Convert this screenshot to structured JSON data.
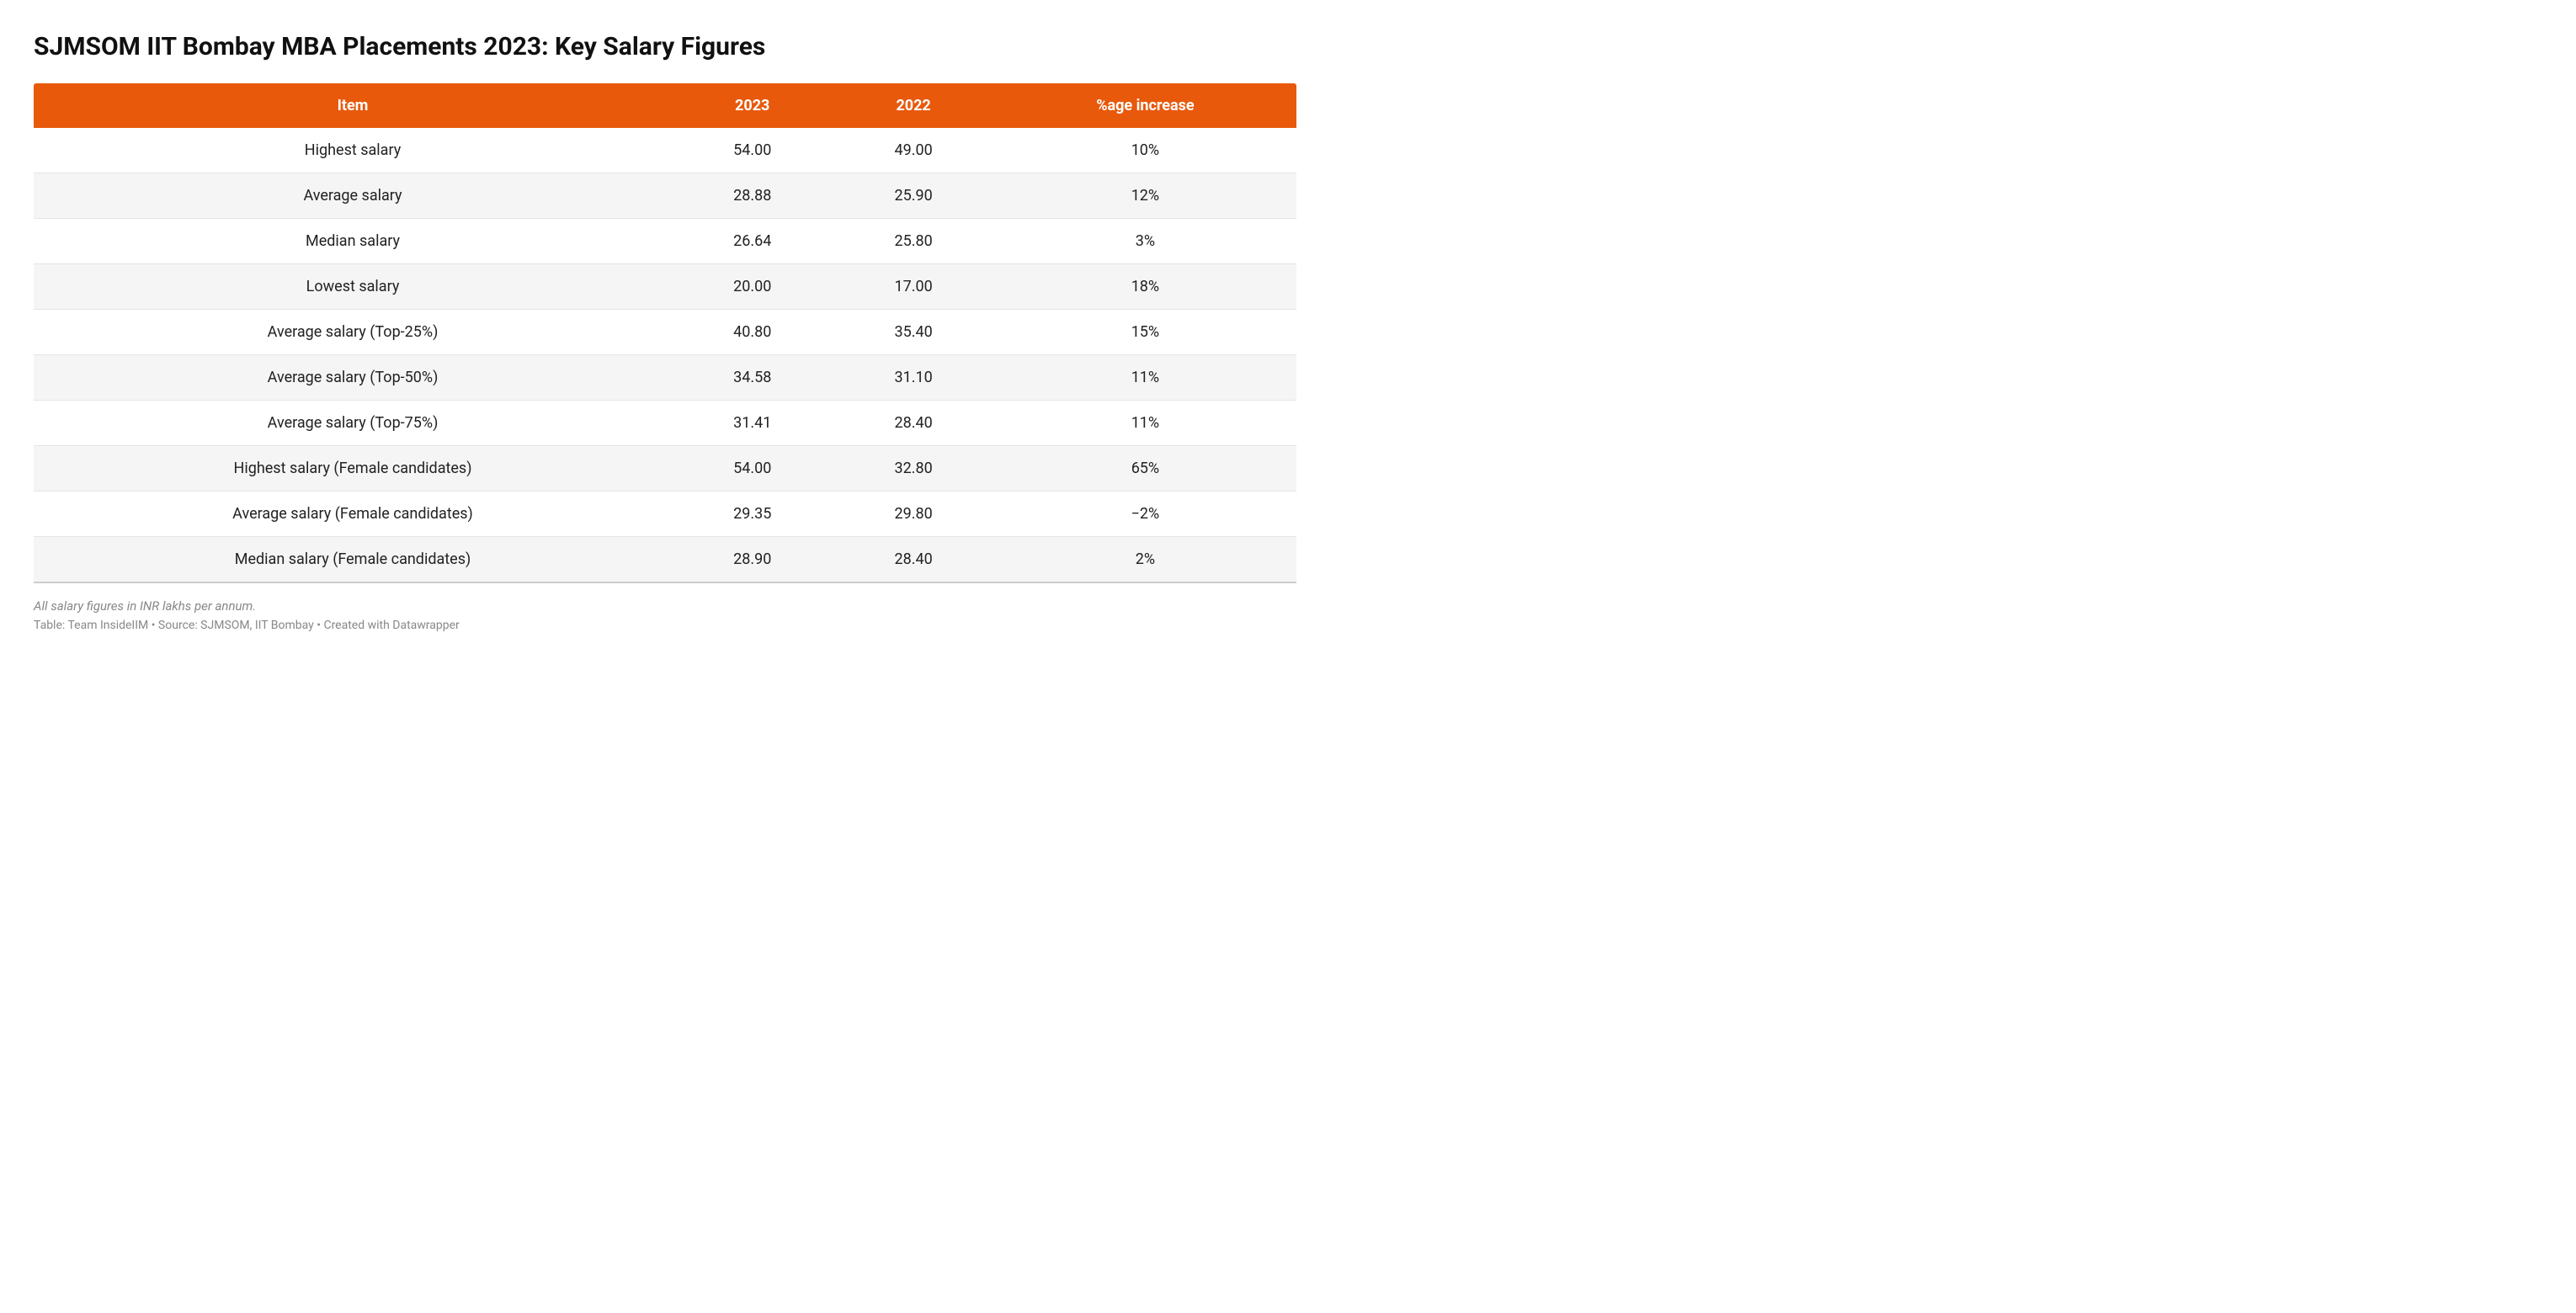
{
  "title": "SJMSOM IIT Bombay MBA Placements 2023: Key Salary Figures",
  "table": {
    "type": "table",
    "header_bg_color": "#e8590c",
    "header_text_color": "#ffffff",
    "row_alt_bg": "#f5f5f5",
    "row_border_color": "#e5e5e5",
    "text_color": "#222222",
    "font_size_pt": 14,
    "columns": [
      "Item",
      "2023",
      "2022",
      "%age increase"
    ],
    "rows": [
      [
        "Highest salary",
        "54.00",
        "49.00",
        "10%"
      ],
      [
        "Average salary",
        "28.88",
        "25.90",
        "12%"
      ],
      [
        "Median salary",
        "26.64",
        "25.80",
        "3%"
      ],
      [
        "Lowest salary",
        "20.00",
        "17.00",
        "18%"
      ],
      [
        "Average salary (Top-25%)",
        "40.80",
        "35.40",
        "15%"
      ],
      [
        "Average salary (Top-50%)",
        "34.58",
        "31.10",
        "11%"
      ],
      [
        "Average salary (Top-75%)",
        "31.41",
        "28.40",
        "11%"
      ],
      [
        "Highest salary (Female candidates)",
        "54.00",
        "32.80",
        "65%"
      ],
      [
        "Average salary (Female candidates)",
        "29.35",
        "29.80",
        "−2%"
      ],
      [
        "Median salary (Female candidates)",
        "28.90",
        "28.40",
        "2%"
      ]
    ]
  },
  "footnote": "All salary figures in INR lakhs per annum.",
  "credit": "Table: Team InsideIIM • Source: SJMSOM, IIT Bombay • Created with Datawrapper",
  "colors": {
    "title": "#111111",
    "background": "#ffffff",
    "footnote": "#888888"
  }
}
